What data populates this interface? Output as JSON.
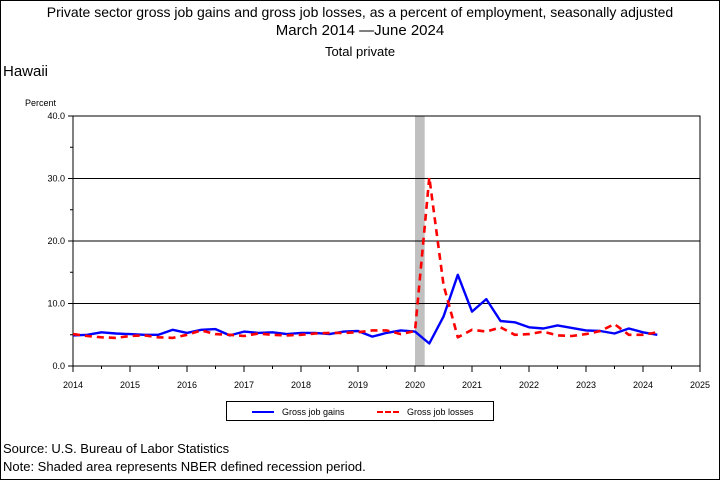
{
  "header": {
    "title_line1": "Private sector gross job gains and gross job losses, as a percent of employment, seasonally adjusted",
    "title_line2": "March 2014 —June 2024",
    "title_line3": "Total private",
    "region": "Hawaii"
  },
  "footer": {
    "source": "Source: U.S. Bureau of Labor Statistics",
    "note": "Note: Shaded area represents NBER defined recession period."
  },
  "colors": {
    "gains": "#0000ff",
    "losses": "#ff0000",
    "recession": "#c0c0c0"
  },
  "chart_data": {
    "type": "line",
    "ylabel": "Percent",
    "ylim": [
      0,
      40
    ],
    "xlim": [
      2014,
      2025
    ],
    "yticks": [
      "0.0",
      "10.0",
      "20.0",
      "30.0",
      "40.0"
    ],
    "xticks": [
      "2014",
      "2015",
      "2016",
      "2017",
      "2018",
      "2019",
      "2020",
      "2021",
      "2022",
      "2023",
      "2024",
      "2025"
    ],
    "grid": "horizontal major",
    "legend_position": "bottom",
    "recession": [
      2020.0,
      2020.17
    ],
    "series": [
      {
        "name": "Gross job gains",
        "style": "solid",
        "x": [
          2014.0,
          2014.25,
          2014.5,
          2014.75,
          2015.0,
          2015.25,
          2015.5,
          2015.75,
          2016.0,
          2016.25,
          2016.5,
          2016.75,
          2017.0,
          2017.25,
          2017.5,
          2017.75,
          2018.0,
          2018.25,
          2018.5,
          2018.75,
          2019.0,
          2019.25,
          2019.5,
          2019.75,
          2020.0,
          2020.25,
          2020.5,
          2020.75,
          2021.0,
          2021.25,
          2021.5,
          2021.75,
          2022.0,
          2022.25,
          2022.5,
          2022.75,
          2023.0,
          2023.25,
          2023.5,
          2023.75,
          2024.0,
          2024.25
        ],
        "values": [
          4.9,
          5.0,
          5.4,
          5.2,
          5.1,
          5.0,
          5.0,
          5.8,
          5.3,
          5.8,
          5.9,
          4.9,
          5.5,
          5.3,
          5.4,
          5.1,
          5.3,
          5.3,
          5.1,
          5.5,
          5.6,
          4.7,
          5.3,
          5.7,
          5.5,
          3.6,
          7.9,
          14.6,
          8.7,
          10.7,
          7.2,
          7.0,
          6.2,
          6.0,
          6.5,
          6.1,
          5.7,
          5.6,
          5.2,
          6.0,
          5.4,
          5.0
        ]
      },
      {
        "name": "Gross job losses",
        "style": "dashed",
        "x": [
          2014.0,
          2014.25,
          2014.5,
          2014.75,
          2015.0,
          2015.25,
          2015.5,
          2015.75,
          2016.0,
          2016.25,
          2016.5,
          2016.75,
          2017.0,
          2017.25,
          2017.5,
          2017.75,
          2018.0,
          2018.25,
          2018.5,
          2018.75,
          2019.0,
          2019.25,
          2019.5,
          2019.75,
          2020.0,
          2020.25,
          2020.5,
          2020.75,
          2021.0,
          2021.25,
          2021.5,
          2021.75,
          2022.0,
          2022.25,
          2022.5,
          2022.75,
          2023.0,
          2023.25,
          2023.5,
          2023.75,
          2024.0,
          2024.25
        ],
        "values": [
          5.1,
          4.8,
          4.6,
          4.5,
          4.8,
          4.9,
          4.6,
          4.5,
          5.0,
          5.7,
          5.1,
          5.0,
          4.8,
          5.2,
          5.0,
          4.9,
          5.0,
          5.2,
          5.3,
          5.3,
          5.4,
          5.7,
          5.7,
          5.1,
          5.6,
          30.2,
          13.0,
          4.6,
          5.8,
          5.5,
          6.2,
          5.0,
          5.1,
          5.5,
          4.9,
          4.8,
          5.1,
          5.6,
          6.7,
          5.0,
          5.0,
          5.4
        ]
      }
    ]
  }
}
